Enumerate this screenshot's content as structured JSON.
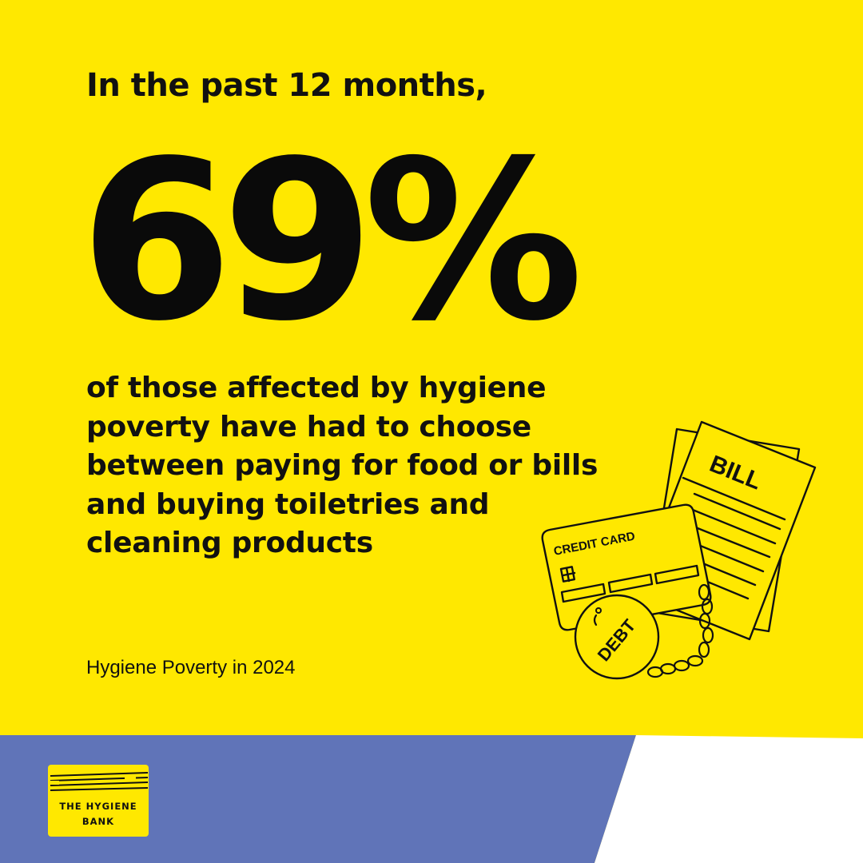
{
  "intro": "In the past 12 months,",
  "stat": "69%",
  "body_lines": [
    "of those affected by hygiene",
    "poverty have had to choose",
    "between paying for food or bills",
    "and buying toiletries and",
    "cleaning products"
  ],
  "source": "Hygiene Poverty in 2024",
  "illustration": {
    "bill_label": "BILL",
    "card_label": "CREDIT CARD",
    "ball_label": "DEBT"
  },
  "logo": {
    "line1": "THE HYGIENE",
    "line2": "BANK"
  },
  "colors": {
    "background": "#FFE800",
    "footer_band": "#6074B8",
    "footer_corner": "#FFFFFF",
    "text": "#111111"
  }
}
